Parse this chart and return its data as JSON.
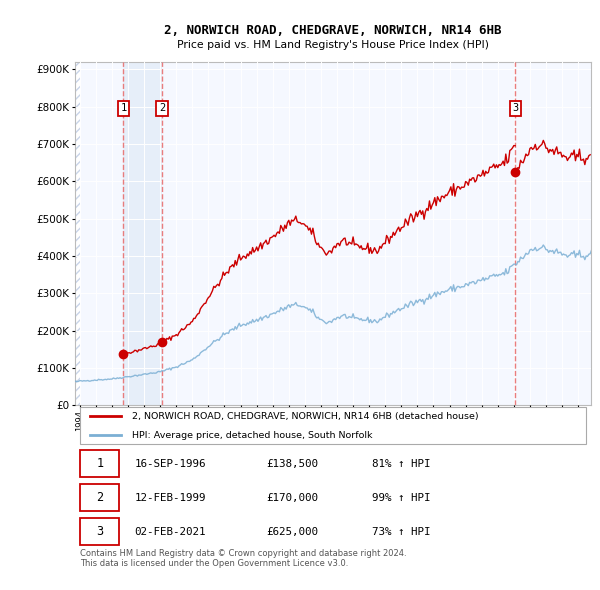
{
  "title_line1": "2, NORWICH ROAD, CHEDGRAVE, NORWICH, NR14 6HB",
  "title_line2": "Price paid vs. HM Land Registry's House Price Index (HPI)",
  "sales": [
    {
      "date_year": 1996.71,
      "price": 138500,
      "label": "1"
    },
    {
      "date_year": 1999.12,
      "price": 170000,
      "label": "2"
    },
    {
      "date_year": 2021.09,
      "price": 625000,
      "label": "3"
    }
  ],
  "legend_entries": [
    "2, NORWICH ROAD, CHEDGRAVE, NORWICH, NR14 6HB (detached house)",
    "HPI: Average price, detached house, South Norfolk"
  ],
  "table_rows": [
    {
      "label": "1",
      "date": "16-SEP-1996",
      "price": "£138,500",
      "hpi": "81% ↑ HPI"
    },
    {
      "label": "2",
      "date": "12-FEB-1999",
      "price": "£170,000",
      "hpi": "99% ↑ HPI"
    },
    {
      "label": "3",
      "date": "02-FEB-2021",
      "price": "£625,000",
      "hpi": "73% ↑ HPI"
    }
  ],
  "footer": "Contains HM Land Registry data © Crown copyright and database right 2024.\nThis data is licensed under the Open Government Licence v3.0.",
  "property_color": "#cc0000",
  "hpi_color": "#7bafd4",
  "vline_color": "#e87070",
  "shade_color": "#dce8f5",
  "ylim": [
    0,
    920000
  ],
  "yticks": [
    0,
    100000,
    200000,
    300000,
    400000,
    500000,
    600000,
    700000,
    800000,
    900000
  ],
  "ytick_labels": [
    "£0",
    "£100K",
    "£200K",
    "£300K",
    "£400K",
    "£500K",
    "£600K",
    "£700K",
    "£800K",
    "£900K"
  ],
  "background_color": "#ffffff",
  "chart_bg_color": "#f5f8ff",
  "hatch_color": "#c8d4e8",
  "xmin": 1993.7,
  "xmax": 2025.8
}
